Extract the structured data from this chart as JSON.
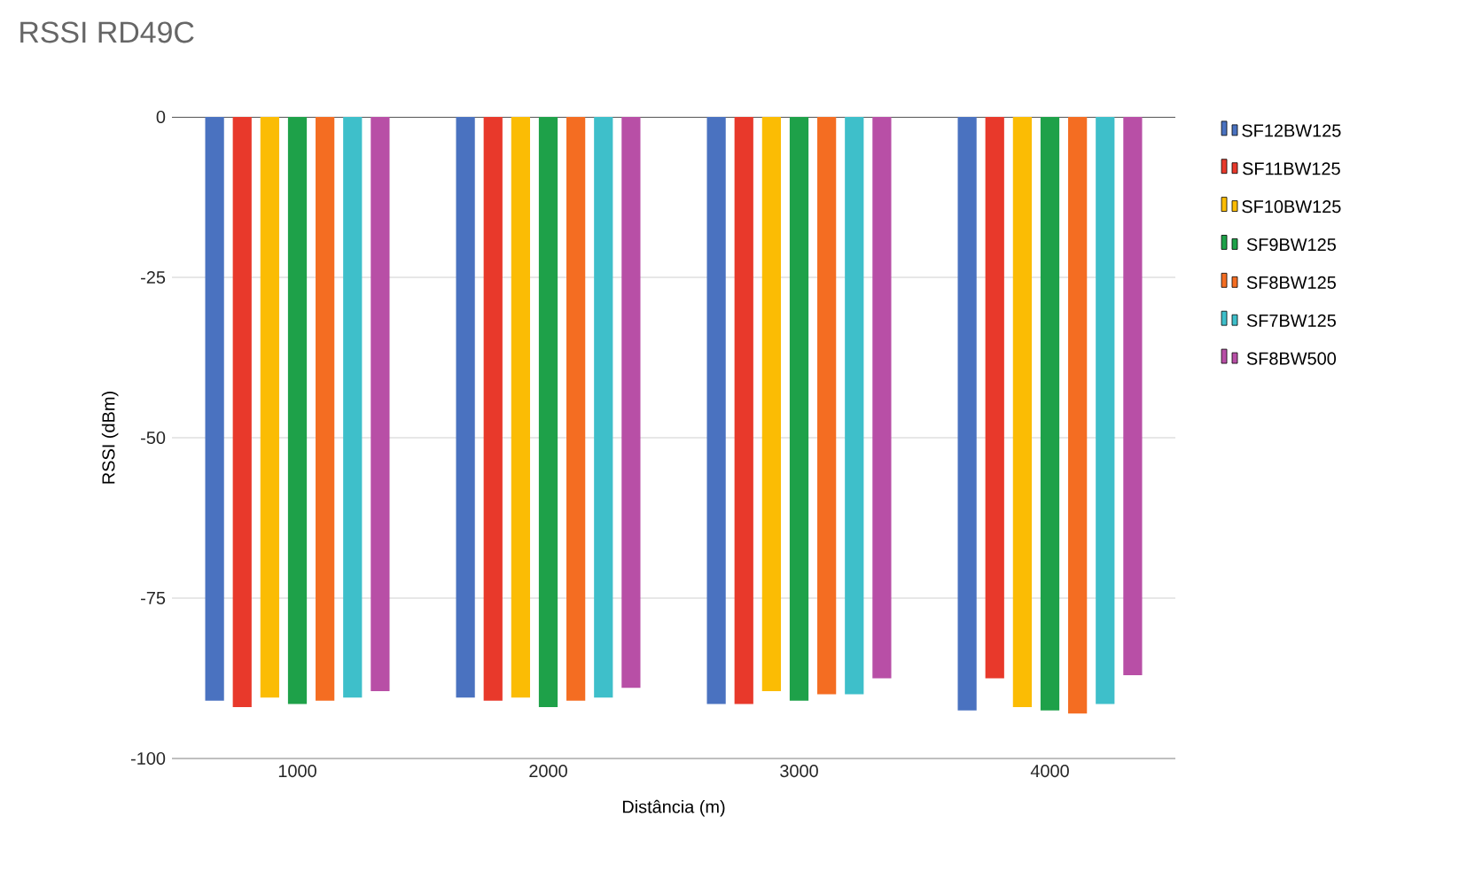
{
  "chart_data": {
    "type": "bar",
    "title": "RSSI RD49C",
    "xlabel": "Distância (m)",
    "ylabel": "RSSI (dBm)",
    "categories": [
      "1000",
      "2000",
      "3000",
      "4000"
    ],
    "series": [
      {
        "name": "SF12BW125",
        "color": "#4a72c0",
        "values": [
          -91,
          -90.5,
          -91.5,
          -92.5
        ]
      },
      {
        "name": "SF11BW125",
        "color": "#e8392b",
        "values": [
          -92,
          -91,
          -91.5,
          -87.5
        ]
      },
      {
        "name": "SF10BW125",
        "color": "#fbbc04",
        "values": [
          -90.5,
          -90.5,
          -89.5,
          -92
        ]
      },
      {
        "name": "SF9BW125",
        "color": "#1ea149",
        "values": [
          -91.5,
          -92,
          -91,
          -92.5
        ]
      },
      {
        "name": "SF8BW125",
        "color": "#f46d22",
        "values": [
          -91,
          -91,
          -90,
          -93
        ]
      },
      {
        "name": "SF7BW125",
        "color": "#3ebfca",
        "values": [
          -90.5,
          -90.5,
          -90,
          -91.5
        ]
      },
      {
        "name": "SF8BW500",
        "color": "#b84fa6",
        "values": [
          -89.5,
          -89,
          -87.5,
          -87
        ]
      }
    ],
    "ylim": [
      -100,
      0
    ],
    "yticks": [
      0,
      -25,
      -50,
      -75,
      -100
    ],
    "grid": "y",
    "legend": "right"
  }
}
